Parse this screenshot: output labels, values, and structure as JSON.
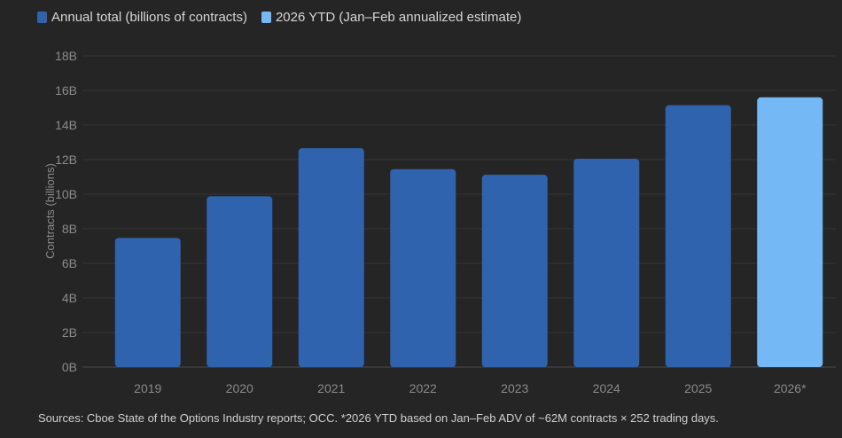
{
  "chart_data": {
    "type": "bar",
    "categories": [
      "2019",
      "2020",
      "2021",
      "2022",
      "2023",
      "2024",
      "2025",
      "2026*"
    ],
    "series": [
      {
        "name": "Annual total (billions of contracts)",
        "values": [
          7.47,
          9.88,
          12.66,
          11.45,
          11.12,
          12.05,
          15.15,
          null
        ],
        "color": "#2f63ad"
      },
      {
        "name": "2026 YTD (Jan–Feb annualized estimate)",
        "values": [
          null,
          null,
          null,
          null,
          null,
          null,
          null,
          15.6
        ],
        "color": "#74b9f6"
      }
    ],
    "ylabel": "Contracts (billions)",
    "ylim": [
      0,
      18
    ],
    "yticks": [
      0,
      2,
      4,
      6,
      8,
      10,
      12,
      14,
      16,
      18
    ],
    "ytick_labels": [
      "0B",
      "2B",
      "4B",
      "6B",
      "8B",
      "10B",
      "12B",
      "14B",
      "16B",
      "18B"
    ],
    "grid": true,
    "legend_position": "top-left"
  },
  "footnote": "Sources: Cboe State of the Options Industry reports; OCC. *2026 YTD based on Jan–Feb ADV of ~62M contracts × 252 trading days."
}
